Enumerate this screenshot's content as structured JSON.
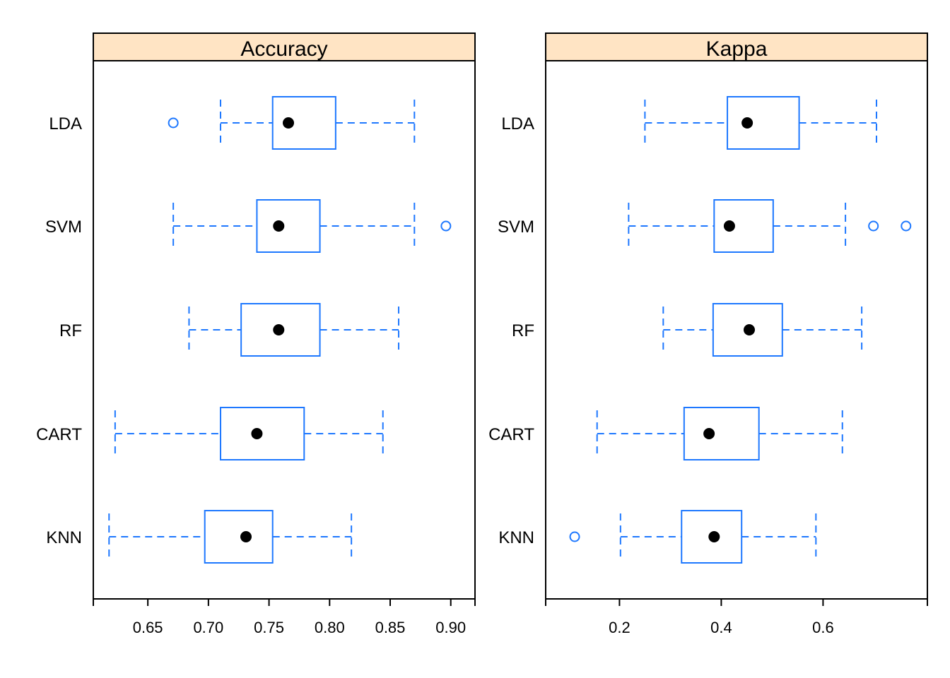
{
  "chart_data": [
    {
      "type": "boxplot",
      "title": "Accuracy",
      "categories": [
        "LDA",
        "SVM",
        "RF",
        "CART",
        "KNN"
      ],
      "xlim": [
        0.605,
        0.92
      ],
      "xticks": [
        0.65,
        0.7,
        0.75,
        0.8,
        0.85,
        0.9
      ],
      "xtick_labels": [
        "0.65",
        "0.70",
        "0.75",
        "0.80",
        "0.85",
        "0.90"
      ],
      "boxes": [
        {
          "name": "LDA",
          "min": 0.71,
          "q1": 0.753,
          "median": 0.766,
          "q3": 0.805,
          "max": 0.87,
          "outliers": [
            0.671
          ]
        },
        {
          "name": "SVM",
          "min": 0.671,
          "q1": 0.74,
          "median": 0.758,
          "q3": 0.792,
          "max": 0.87,
          "outliers": [
            0.896
          ]
        },
        {
          "name": "RF",
          "min": 0.684,
          "q1": 0.727,
          "median": 0.758,
          "q3": 0.792,
          "max": 0.857,
          "outliers": []
        },
        {
          "name": "CART",
          "min": 0.623,
          "q1": 0.71,
          "median": 0.74,
          "q3": 0.779,
          "max": 0.844,
          "outliers": []
        },
        {
          "name": "KNN",
          "min": 0.618,
          "q1": 0.697,
          "median": 0.731,
          "q3": 0.753,
          "max": 0.818,
          "outliers": []
        }
      ]
    },
    {
      "type": "boxplot",
      "title": "Kappa",
      "categories": [
        "LDA",
        "SVM",
        "RF",
        "CART",
        "KNN"
      ],
      "xlim": [
        0.055,
        0.805
      ],
      "xticks": [
        0.2,
        0.4,
        0.6
      ],
      "xtick_labels": [
        "0.2",
        "0.4",
        "0.6"
      ],
      "boxes": [
        {
          "name": "LDA",
          "min": 0.25,
          "q1": 0.412,
          "median": 0.451,
          "q3": 0.553,
          "max": 0.705,
          "outliers": []
        },
        {
          "name": "SVM",
          "min": 0.218,
          "q1": 0.386,
          "median": 0.416,
          "q3": 0.502,
          "max": 0.644,
          "outliers": [
            0.699,
            0.763
          ]
        },
        {
          "name": "RF",
          "min": 0.286,
          "q1": 0.384,
          "median": 0.455,
          "q3": 0.52,
          "max": 0.676,
          "outliers": []
        },
        {
          "name": "CART",
          "min": 0.156,
          "q1": 0.327,
          "median": 0.376,
          "q3": 0.474,
          "max": 0.638,
          "outliers": []
        },
        {
          "name": "KNN",
          "min": 0.202,
          "q1": 0.322,
          "median": 0.386,
          "q3": 0.44,
          "max": 0.586,
          "outliers": [
            0.112
          ]
        }
      ]
    }
  ],
  "colors": {
    "strip": "#FFE4C4",
    "box": "#1E78FF",
    "median": "#000000",
    "frame": "#000000"
  }
}
